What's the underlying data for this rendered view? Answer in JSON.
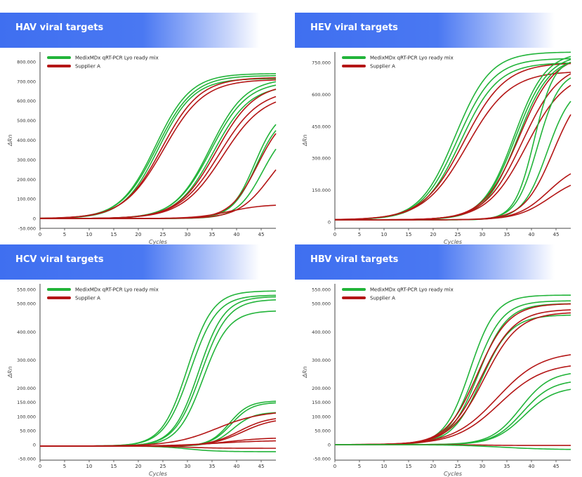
{
  "colors": {
    "medix": "#22b43a",
    "supplier": "#b41616",
    "banner_start": "#3f6ff0",
    "banner_end": "#ffffff",
    "axis": "#333333"
  },
  "chart_data": [
    {
      "type": "line",
      "title": "HAV viral targets",
      "xlabel": "Cycles",
      "ylabel": "ΔRn",
      "xlim": [
        0,
        48
      ],
      "ylim": [
        -50000,
        850000
      ],
      "xticks": [
        0,
        5,
        10,
        15,
        20,
        25,
        30,
        35,
        40,
        45
      ],
      "yticks": [
        -50000,
        0,
        100000,
        200000,
        300000,
        400000,
        500000,
        600000,
        700000,
        800000
      ],
      "ytick_labels": [
        "-50.000",
        "0",
        "100.000",
        "200.000",
        "300.000",
        "400.000",
        "500.000",
        "600.000",
        "700.000",
        "800.000"
      ],
      "legend": {
        "position": "top-left",
        "entries": [
          {
            "label": "MedixMDx qRT-PCR Lyo ready mix",
            "color": "#22b43a"
          },
          {
            "label": "Supplier A",
            "color": "#b41616"
          }
        ]
      },
      "series": [
        {
          "group": "medix",
          "curve": [
            740000,
            23.5,
            3.6,
            0
          ]
        },
        {
          "group": "medix",
          "curve": [
            730000,
            23.8,
            3.7,
            0
          ]
        },
        {
          "group": "medix",
          "curve": [
            715000,
            24.1,
            3.6,
            0
          ]
        },
        {
          "group": "supplier",
          "curve": [
            720000,
            24.8,
            3.9,
            0
          ]
        },
        {
          "group": "supplier",
          "curve": [
            710000,
            25.2,
            4.1,
            0
          ]
        },
        {
          "group": "medix",
          "curve": [
            715000,
            34.6,
            3.6,
            0
          ]
        },
        {
          "group": "medix",
          "curve": [
            700000,
            34.8,
            3.7,
            0
          ]
        },
        {
          "group": "medix",
          "curve": [
            680000,
            35.3,
            3.7,
            0
          ]
        },
        {
          "group": "supplier",
          "curve": [
            690000,
            35.9,
            3.9,
            0
          ]
        },
        {
          "group": "supplier",
          "curve": [
            660000,
            36.5,
            4.1,
            0
          ]
        },
        {
          "group": "supplier",
          "curve": [
            640000,
            37.2,
            4.2,
            0
          ]
        },
        {
          "group": "medix",
          "curve": [
            560000,
            43.7,
            2.4,
            0
          ]
        },
        {
          "group": "medix",
          "curve": [
            540000,
            44.0,
            2.5,
            0
          ]
        },
        {
          "group": "medix",
          "curve": [
            480000,
            45.3,
            2.6,
            0
          ]
        },
        {
          "group": "supplier",
          "curve": [
            550000,
            44.3,
            2.8,
            0
          ]
        },
        {
          "group": "supplier",
          "curve": [
            420000,
            46.8,
            3.2,
            0
          ]
        },
        {
          "group": "supplier",
          "curve": [
            72000,
            38.5,
            3.4,
            0
          ]
        }
      ]
    },
    {
      "type": "line",
      "title": "HEV viral targets",
      "xlabel": "Cycles",
      "ylabel": "ΔRn",
      "xlim": [
        0,
        48
      ],
      "ylim": [
        -30000,
        800000
      ],
      "xticks": [
        0,
        5,
        10,
        15,
        20,
        25,
        30,
        35,
        40,
        45
      ],
      "yticks": [
        0,
        150000,
        300000,
        450000,
        600000,
        750000
      ],
      "ytick_labels": [
        "0",
        "150.000",
        "300.000",
        "450.000",
        "600.000",
        "750.000"
      ],
      "legend": {
        "position": "top-left",
        "entries": [
          {
            "label": "MedixMDx qRT-PCR Lyo ready mix",
            "color": "#22b43a"
          },
          {
            "label": "Supplier A",
            "color": "#b41616"
          }
        ]
      },
      "series": [
        {
          "group": "medix",
          "curve": [
            790000,
            24.5,
            3.6,
            10000
          ]
        },
        {
          "group": "medix",
          "curve": [
            760000,
            25.0,
            3.7,
            10000
          ]
        },
        {
          "group": "medix",
          "curve": [
            740000,
            25.6,
            3.8,
            10000
          ]
        },
        {
          "group": "supplier",
          "curve": [
            740000,
            26.3,
            4.2,
            10000
          ]
        },
        {
          "group": "supplier",
          "curve": [
            700000,
            26.9,
            4.4,
            10000
          ]
        },
        {
          "group": "medix",
          "curve": [
            790000,
            36.5,
            3.2,
            10000
          ]
        },
        {
          "group": "medix",
          "curve": [
            780000,
            36.8,
            3.3,
            10000
          ]
        },
        {
          "group": "medix",
          "curve": [
            770000,
            37.2,
            3.3,
            10000
          ]
        },
        {
          "group": "supplier",
          "curve": [
            780000,
            37.5,
            3.6,
            10000
          ]
        },
        {
          "group": "supplier",
          "curve": [
            740000,
            38.2,
            3.8,
            10000
          ]
        },
        {
          "group": "supplier",
          "curve": [
            700000,
            39.0,
            4.0,
            10000
          ]
        },
        {
          "group": "medix",
          "curve": [
            760000,
            40.6,
            2.0,
            10000
          ]
        },
        {
          "group": "medix",
          "curve": [
            700000,
            41.3,
            2.2,
            10000
          ]
        },
        {
          "group": "medix",
          "curve": [
            640000,
            43.2,
            2.5,
            10000
          ]
        },
        {
          "group": "supplier",
          "curve": [
            650000,
            44.5,
            3.0,
            10000
          ]
        },
        {
          "group": "supplier",
          "curve": [
            270000,
            43.5,
            3.2,
            10000
          ]
        },
        {
          "group": "supplier",
          "curve": [
            210000,
            43.8,
            3.4,
            10000
          ]
        }
      ]
    },
    {
      "type": "line",
      "title": "HCV viral targets",
      "xlabel": "Cycles",
      "ylabel": "ΔRn",
      "xlim": [
        0,
        48
      ],
      "ylim": [
        -55000,
        570000
      ],
      "xticks": [
        0,
        5,
        10,
        15,
        20,
        25,
        30,
        35,
        40,
        45
      ],
      "yticks": [
        -50000,
        0,
        50000,
        100000,
        150000,
        200000,
        300000,
        400000,
        500000,
        550000
      ],
      "ytick_labels": [
        "-50.000",
        "0",
        "50.000",
        "100.000",
        "150.000",
        "200.000",
        "300.000",
        "400.000",
        "500.000",
        "550.000"
      ],
      "legend": {
        "position": "top-left",
        "entries": [
          {
            "label": "MedixMDx qRT-PCR Lyo ready mix",
            "color": "#22b43a"
          },
          {
            "label": "Supplier A",
            "color": "#b41616"
          }
        ]
      },
      "series": [
        {
          "group": "medix",
          "curve": [
            550000,
            30.0,
            2.6,
            -5000
          ]
        },
        {
          "group": "medix",
          "curve": [
            535000,
            30.6,
            2.7,
            -5000
          ]
        },
        {
          "group": "medix",
          "curve": [
            530000,
            32.3,
            2.6,
            -5000
          ]
        },
        {
          "group": "medix",
          "curve": [
            520000,
            32.8,
            2.7,
            -5000
          ]
        },
        {
          "group": "medix",
          "curve": [
            480000,
            33.2,
            2.6,
            -5000
          ]
        },
        {
          "group": "medix",
          "curve": [
            160000,
            38.5,
            2.0,
            -5000
          ]
        },
        {
          "group": "medix",
          "curve": [
            155000,
            38.9,
            2.1,
            -5000
          ]
        },
        {
          "group": "medix",
          "curve": [
            120000,
            39.2,
            2.1,
            -5000
          ]
        },
        {
          "group": "medix",
          "curve": [
            -20000,
            30.0,
            3.0,
            -5000
          ]
        },
        {
          "group": "supplier",
          "curve": [
            105000,
            40.5,
            3.0,
            -5000
          ]
        },
        {
          "group": "supplier",
          "curve": [
            100000,
            41.2,
            3.2,
            -5000
          ]
        },
        {
          "group": "supplier",
          "curve": [
            125000,
            36.0,
            4.5,
            -5000
          ]
        },
        {
          "group": "supplier",
          "curve": [
            30000,
            38.0,
            4.0,
            -5000
          ]
        },
        {
          "group": "supplier",
          "curve": [
            20000,
            36.0,
            5.0,
            -5000
          ]
        },
        {
          "group": "supplier",
          "curve": [
            -8000,
            30.0,
            3.0,
            -5000
          ]
        }
      ]
    },
    {
      "type": "line",
      "title": "HBV viral targets",
      "xlabel": "Cycles",
      "ylabel": "ΔRn",
      "xlim": [
        0,
        48
      ],
      "ylim": [
        -55000,
        570000
      ],
      "xticks": [
        0,
        5,
        10,
        15,
        20,
        25,
        30,
        35,
        40,
        45
      ],
      "yticks": [
        -50000,
        0,
        50000,
        100000,
        150000,
        200000,
        300000,
        400000,
        500000,
        550000
      ],
      "ytick_labels": [
        "-50.000",
        "0",
        "50.000",
        "100.000",
        "150.000",
        "200.000",
        "300.000",
        "400.000",
        "500.000",
        "550.000"
      ],
      "legend": {
        "position": "top-left",
        "entries": [
          {
            "label": "MedixMDx qRT-PCR Lyo ready mix",
            "color": "#22b43a"
          },
          {
            "label": "Supplier A",
            "color": "#b41616"
          }
        ]
      },
      "series": [
        {
          "group": "medix",
          "curve": [
            530000,
            27.5,
            2.6,
            0
          ]
        },
        {
          "group": "medix",
          "curve": [
            510000,
            28.5,
            2.8,
            0
          ]
        },
        {
          "group": "medix",
          "curve": [
            500000,
            29.2,
            2.9,
            0
          ]
        },
        {
          "group": "medix",
          "curve": [
            460000,
            29.8,
            3.0,
            0
          ]
        },
        {
          "group": "supplier",
          "curve": [
            500000,
            29.0,
            3.2,
            0
          ]
        },
        {
          "group": "supplier",
          "curve": [
            480000,
            29.8,
            3.4,
            0
          ]
        },
        {
          "group": "supplier",
          "curve": [
            470000,
            30.4,
            3.5,
            0
          ]
        },
        {
          "group": "supplier",
          "curve": [
            330000,
            33.0,
            4.5,
            0
          ]
        },
        {
          "group": "supplier",
          "curve": [
            290000,
            33.5,
            4.5,
            0
          ]
        },
        {
          "group": "medix",
          "curve": [
            260000,
            37.8,
            3.0,
            0
          ]
        },
        {
          "group": "medix",
          "curve": [
            230000,
            38.2,
            3.0,
            0
          ]
        },
        {
          "group": "medix",
          "curve": [
            205000,
            38.5,
            3.1,
            0
          ]
        },
        {
          "group": "supplier",
          "curve": [
            -3000,
            30.0,
            3.0,
            0
          ]
        },
        {
          "group": "medix",
          "curve": [
            -18000,
            34.0,
            5.0,
            0
          ]
        }
      ]
    }
  ]
}
